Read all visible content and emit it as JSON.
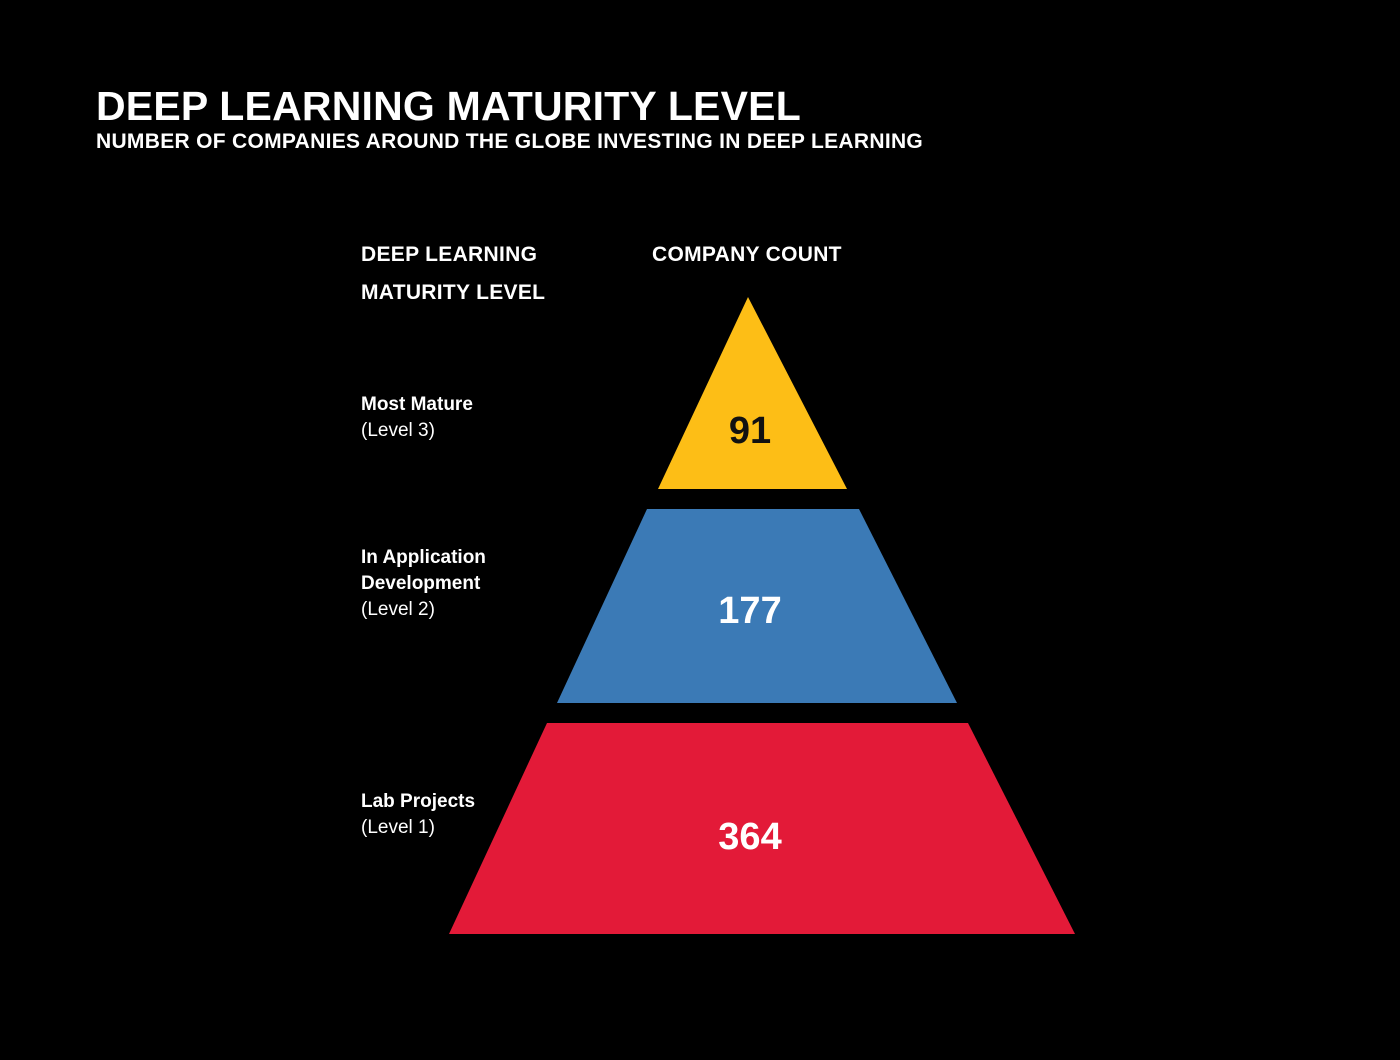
{
  "title": "DEEP LEARNING MATURITY LEVEL",
  "subtitle": "NUMBER OF COMPANIES AROUND THE GLOBE INVESTING IN DEEP LEARNING",
  "columns": {
    "level_line1": "DEEP LEARNING",
    "level_line2": "MATURITY LEVEL",
    "count": "COMPANY COUNT"
  },
  "levels": [
    {
      "name_lines": [
        "Most Mature"
      ],
      "sub": "(Level 3)",
      "count": "91",
      "color": "#FDBE16",
      "text_color": "#111111"
    },
    {
      "name_lines": [
        "In Application",
        "Development"
      ],
      "sub": "(Level 2)",
      "count": "177",
      "color": "#3B7AB6",
      "text_color": "#ffffff"
    },
    {
      "name_lines": [
        "Lab Projects"
      ],
      "sub": "(Level 1)",
      "count": "364",
      "color": "#E31A38",
      "text_color": "#ffffff"
    }
  ],
  "chart_data": {
    "type": "bar",
    "title": "DEEP LEARNING MATURITY LEVEL",
    "subtitle": "NUMBER OF COMPANIES AROUND THE GLOBE INVESTING IN DEEP LEARNING",
    "xlabel": "DEEP LEARNING MATURITY LEVEL",
    "ylabel": "COMPANY COUNT",
    "categories": [
      "Most Mature (Level 3)",
      "In Application Development (Level 2)",
      "Lab Projects (Level 1)"
    ],
    "values": [
      91,
      177,
      364
    ],
    "grid": false,
    "legend": "none"
  }
}
